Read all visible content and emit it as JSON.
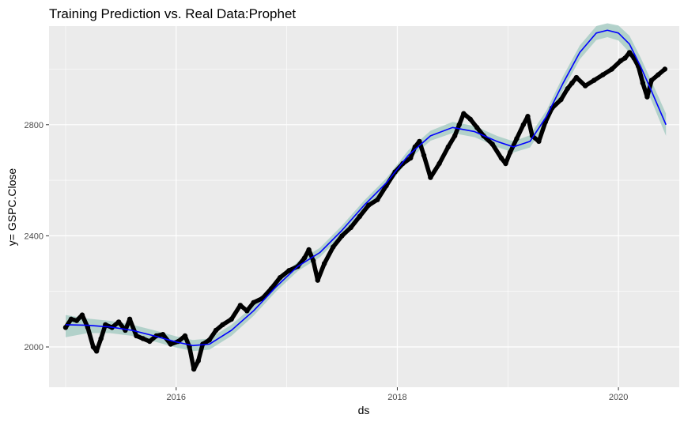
{
  "chart_data": {
    "type": "line",
    "title": "Training Prediction vs. Real Data:Prophet",
    "xlabel": "ds",
    "ylabel": "y= GSPC.Close",
    "xlim": [
      2014.85,
      2020.55
    ],
    "ylim": [
      1855,
      3155
    ],
    "x_ticks": [
      {
        "value": 2016,
        "label": "2016"
      },
      {
        "value": 2018,
        "label": "2018"
      },
      {
        "value": 2020,
        "label": "2020"
      }
    ],
    "y_ticks": [
      {
        "value": 2000,
        "label": "2000"
      },
      {
        "value": 2400,
        "label": "2400"
      },
      {
        "value": 2800,
        "label": "2800"
      }
    ],
    "grid": true,
    "colors": {
      "panel": "#ebebeb",
      "grid": "#ffffff",
      "actual": "#000000",
      "prediction": "#0000ff",
      "band": "#a8ccc4"
    },
    "series": [
      {
        "role": "actual",
        "style": "points",
        "x": [
          2015.0,
          2015.05,
          2015.1,
          2015.15,
          2015.2,
          2015.25,
          2015.28,
          2015.32,
          2015.36,
          2015.42,
          2015.48,
          2015.54,
          2015.58,
          2015.64,
          2015.7,
          2015.76,
          2015.82,
          2015.88,
          2015.95,
          2016.02,
          2016.08,
          2016.12,
          2016.16,
          2016.2,
          2016.24,
          2016.3,
          2016.36,
          2016.42,
          2016.5,
          2016.58,
          2016.64,
          2016.7,
          2016.78,
          2016.86,
          2016.94,
          2017.02,
          2017.1,
          2017.16,
          2017.2,
          2017.24,
          2017.28,
          2017.34,
          2017.42,
          2017.5,
          2017.58,
          2017.66,
          2017.74,
          2017.82,
          2017.9,
          2017.98,
          2018.05,
          2018.12,
          2018.16,
          2018.2,
          2018.24,
          2018.3,
          2018.38,
          2018.46,
          2018.52,
          2018.56,
          2018.6,
          2018.66,
          2018.72,
          2018.78,
          2018.86,
          2018.94,
          2018.98,
          2019.02,
          2019.08,
          2019.14,
          2019.18,
          2019.22,
          2019.28,
          2019.34,
          2019.4,
          2019.48,
          2019.54,
          2019.58,
          2019.62,
          2019.7,
          2019.78,
          2019.86,
          2019.94,
          2020.02,
          2020.06,
          2020.1,
          2020.14,
          2020.18,
          2020.22,
          2020.26,
          2020.3,
          2020.36,
          2020.42
        ],
        "y": [
          2070,
          2100,
          2095,
          2115,
          2070,
          2000,
          1985,
          2030,
          2080,
          2070,
          2090,
          2060,
          2100,
          2040,
          2030,
          2020,
          2040,
          2045,
          2010,
          2020,
          2040,
          2000,
          1920,
          1950,
          2010,
          2025,
          2060,
          2080,
          2100,
          2150,
          2130,
          2160,
          2175,
          2210,
          2250,
          2275,
          2290,
          2320,
          2350,
          2310,
          2240,
          2300,
          2360,
          2400,
          2430,
          2470,
          2510,
          2530,
          2580,
          2630,
          2660,
          2680,
          2720,
          2740,
          2690,
          2610,
          2660,
          2720,
          2760,
          2800,
          2840,
          2820,
          2790,
          2760,
          2730,
          2680,
          2660,
          2700,
          2750,
          2800,
          2830,
          2760,
          2740,
          2810,
          2860,
          2890,
          2930,
          2950,
          2970,
          2940,
          2960,
          2980,
          3000,
          3030,
          3040,
          3060,
          3040,
          3010,
          2950,
          2900,
          2960,
          2980,
          3000
        ]
      },
      {
        "role": "prediction",
        "style": "line",
        "x": [
          2015.0,
          2015.2,
          2015.4,
          2015.6,
          2015.8,
          2016.0,
          2016.15,
          2016.3,
          2016.5,
          2016.7,
          2016.9,
          2017.1,
          2017.3,
          2017.5,
          2017.7,
          2017.9,
          2018.1,
          2018.3,
          2018.5,
          2018.7,
          2018.9,
          2019.05,
          2019.2,
          2019.35,
          2019.5,
          2019.65,
          2019.8,
          2019.9,
          2020.0,
          2020.1,
          2020.2,
          2020.3,
          2020.43
        ],
        "y": [
          2080,
          2078,
          2072,
          2060,
          2040,
          2018,
          2005,
          2010,
          2060,
          2130,
          2215,
          2290,
          2340,
          2420,
          2510,
          2590,
          2690,
          2760,
          2790,
          2775,
          2740,
          2720,
          2740,
          2830,
          2950,
          3060,
          3130,
          3140,
          3130,
          3090,
          3010,
          2920,
          2800
        ],
        "band_low": [
          2035,
          2050,
          2050,
          2040,
          2020,
          1998,
          1985,
          1990,
          2040,
          2112,
          2198,
          2273,
          2323,
          2403,
          2493,
          2573,
          2672,
          2742,
          2770,
          2755,
          2720,
          2700,
          2718,
          2808,
          2925,
          3035,
          3105,
          3115,
          3103,
          3060,
          2978,
          2885,
          2760
        ],
        "band_high": [
          2115,
          2102,
          2094,
          2080,
          2060,
          2038,
          2025,
          2030,
          2080,
          2148,
          2232,
          2307,
          2357,
          2437,
          2527,
          2607,
          2708,
          2778,
          2810,
          2795,
          2760,
          2740,
          2762,
          2852,
          2975,
          3085,
          3155,
          3165,
          3157,
          3120,
          3042,
          2955,
          2840
        ]
      }
    ]
  }
}
